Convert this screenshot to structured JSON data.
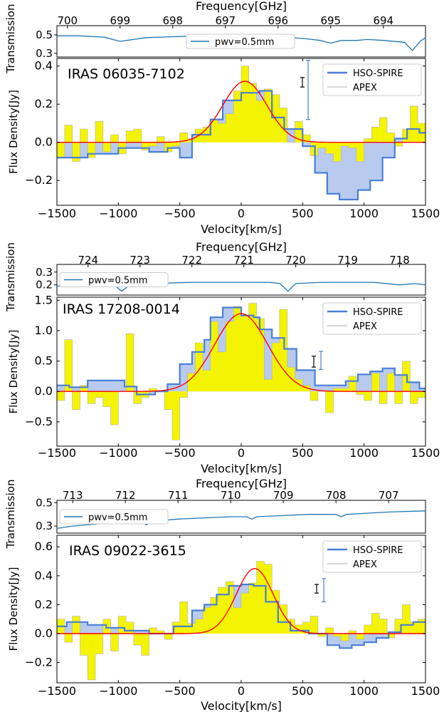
{
  "chart_data": [
    {
      "type": "line",
      "source_name": "IRAS 06035-7102",
      "freq_axis": {
        "label": "Frequency[GHz]",
        "ticks": [
          700,
          699,
          698,
          697,
          696,
          695,
          694
        ],
        "range_ghz": [
          700.2,
          693.2
        ]
      },
      "trans": {
        "ylabel": "Transmission",
        "yticks": [
          0.3,
          0.5
        ],
        "ylim": [
          0.26,
          0.6
        ],
        "legend": "pwv=0.5mm",
        "x": [
          700.2,
          699.8,
          699.3,
          699.0,
          698.5,
          698.0,
          697.5,
          697.0,
          696.5,
          696.0,
          695.5,
          695.2,
          695.0,
          694.8,
          694.5,
          694.3,
          694.0,
          693.6,
          693.45,
          693.3,
          693.2
        ],
        "y": [
          0.49,
          0.49,
          0.475,
          0.43,
          0.47,
          0.48,
          0.49,
          0.49,
          0.49,
          0.48,
          0.46,
          0.44,
          0.41,
          0.44,
          0.44,
          0.45,
          0.44,
          0.42,
          0.33,
          0.43,
          0.47
        ]
      },
      "flux": {
        "xlabel": "Velocity[km/s]",
        "ylabel": "Flux Density[Jy]",
        "xlim": [
          -1500,
          1500
        ],
        "ylim": [
          -0.33,
          0.44
        ],
        "xticks": [
          -1500,
          -1000,
          -500,
          0,
          500,
          1000,
          1500
        ],
        "yticks": [
          -0.2,
          0.0,
          0.2,
          0.4
        ],
        "legend": [
          "HSO-SPIRE",
          "APEX"
        ],
        "apex_x": [
          -1500,
          -1437,
          -1375,
          -1312,
          -1250,
          -1187,
          -1125,
          -1062,
          -1000,
          -937,
          -875,
          -812,
          -750,
          -687,
          -625,
          -562,
          -500,
          -437,
          -375,
          -312,
          -250,
          -187,
          -125,
          -62,
          0,
          62,
          125,
          187,
          250,
          312,
          375,
          437,
          500,
          562,
          625,
          687,
          750,
          812,
          875,
          937,
          1000,
          1062,
          1125,
          1187,
          1250,
          1312,
          1375,
          1437
        ],
        "apex_y": [
          -0.08,
          0.09,
          -0.1,
          0.07,
          -0.08,
          0.11,
          -0.05,
          0.04,
          -0.06,
          0.06,
          0.07,
          -0.04,
          -0.02,
          0.03,
          -0.05,
          -0.02,
          0.05,
          0.02,
          0.07,
          0.08,
          0.12,
          0.1,
          0.15,
          0.27,
          0.4,
          0.31,
          0.22,
          0.28,
          0.25,
          0.18,
          0.0,
          0.11,
          0.04,
          -0.07,
          -0.03,
          -0.06,
          -0.1,
          -0.02,
          -0.03,
          -0.1,
          0.02,
          0.08,
          0.13,
          0.05,
          -0.02,
          0.07,
          0.19,
          0.1
        ],
        "spire_x": [
          -1500,
          -1250,
          -1000,
          -750,
          -600,
          -500,
          -400,
          -250,
          -150,
          0,
          150,
          250,
          350,
          500,
          600,
          700,
          800,
          950,
          1050,
          1150,
          1250,
          1350,
          1450,
          1500
        ],
        "spire_y": [
          -0.08,
          -0.06,
          -0.03,
          -0.05,
          -0.03,
          -0.08,
          0.04,
          0.12,
          0.22,
          0.26,
          0.27,
          0.13,
          0.07,
          -0.02,
          -0.16,
          -0.27,
          -0.3,
          -0.25,
          -0.2,
          -0.08,
          0.02,
          0.07,
          0.05,
          0.05
        ],
        "gauss": {
          "amp": 0.32,
          "center": 30,
          "sigma": 180
        },
        "apex_error": [
          0.29,
          0.34
        ],
        "spire_error": [
          0.12,
          0.43
        ]
      }
    },
    {
      "type": "line",
      "source_name": "IRAS 17208-0014",
      "freq_axis": {
        "label": "Frequency[GHz]",
        "ticks": [
          724,
          723,
          722,
          721,
          720,
          719,
          718
        ],
        "range_ghz": [
          724.6,
          717.5
        ]
      },
      "trans": {
        "ylabel": "Transmission",
        "yticks": [
          0.2,
          0.3
        ],
        "ylim": [
          0.12,
          0.36
        ],
        "legend": "pwv=0.5mm",
        "x": [
          724.6,
          724.0,
          723.5,
          723.35,
          723.2,
          722.8,
          722.0,
          721.0,
          720.5,
          720.3,
          720.15,
          720.0,
          719.5,
          719.0,
          718.5,
          718.0,
          717.7,
          717.5
        ],
        "y": [
          0.19,
          0.2,
          0.2,
          0.15,
          0.2,
          0.21,
          0.22,
          0.22,
          0.22,
          0.21,
          0.15,
          0.21,
          0.22,
          0.22,
          0.22,
          0.2,
          0.21,
          0.2
        ]
      },
      "flux": {
        "xlabel": "Velocity[km/s]",
        "ylabel": "Flux Density[Jy]",
        "xlim": [
          -1500,
          1500
        ],
        "ylim": [
          -0.9,
          1.55
        ],
        "xticks": [
          -1500,
          -1000,
          -500,
          0,
          500,
          1000,
          1500
        ],
        "yticks": [
          -0.5,
          0.0,
          0.5,
          1.0,
          1.5
        ],
        "legend": [
          "HSO-SPIRE",
          "APEX"
        ],
        "apex_x": [
          -1500,
          -1437,
          -1375,
          -1312,
          -1250,
          -1187,
          -1125,
          -1062,
          -1000,
          -937,
          -875,
          -812,
          -750,
          -687,
          -625,
          -562,
          -500,
          -437,
          -375,
          -312,
          -250,
          -187,
          -125,
          -62,
          0,
          62,
          125,
          187,
          250,
          312,
          375,
          437,
          500,
          562,
          625,
          687,
          750,
          812,
          875,
          937,
          1000,
          1062,
          1125,
          1187,
          1250,
          1312,
          1375,
          1437
        ],
        "apex_y": [
          -0.15,
          0.85,
          -0.3,
          0.1,
          -0.2,
          -0.1,
          -0.25,
          -0.55,
          0.0,
          0.95,
          -0.2,
          -0.1,
          0.05,
          0.0,
          -0.3,
          -0.8,
          -0.1,
          0.3,
          0.8,
          0.35,
          1.15,
          0.65,
          1.15,
          1.4,
          1.25,
          1.45,
          1.2,
          0.2,
          0.8,
          1.35,
          0.4,
          0.2,
          0.1,
          -0.15,
          0.0,
          -0.35,
          0.05,
          0.05,
          0.25,
          -0.05,
          -0.15,
          0.3,
          -0.2,
          0.3,
          -0.2,
          0.5,
          -0.2,
          -0.1
        ],
        "spire_x": [
          -1500,
          -1400,
          -1250,
          -1050,
          -950,
          -850,
          -700,
          -600,
          -500,
          -400,
          -300,
          -250,
          -150,
          0,
          100,
          150,
          250,
          350,
          450,
          600,
          750,
          850,
          950,
          1050,
          1150,
          1250,
          1350,
          1450,
          1500
        ],
        "spire_y": [
          0.1,
          0.07,
          0.18,
          0.18,
          0.08,
          -0.05,
          0.0,
          0.12,
          0.45,
          0.65,
          0.85,
          1.22,
          1.38,
          1.25,
          1.22,
          1.02,
          0.88,
          0.7,
          0.35,
          0.1,
          0.1,
          0.17,
          0.28,
          0.33,
          0.38,
          0.27,
          0.15,
          0.05,
          0.05
        ],
        "gauss": {
          "amp": 1.28,
          "center": 0,
          "sigma": 215
        },
        "apex_error": [
          0.4,
          0.58
        ],
        "spire_error": [
          0.36,
          0.66
        ]
      }
    },
    {
      "type": "line",
      "source_name": "IRAS 09022-3615",
      "freq_axis": {
        "label": "Frequency[GHz]",
        "ticks": [
          713,
          712,
          711,
          710,
          709,
          708,
          707
        ],
        "range_ghz": [
          713.3,
          706.3
        ]
      },
      "trans": {
        "ylabel": "Transmission",
        "yticks": [
          0.3,
          0.5
        ],
        "ylim": [
          0.24,
          0.52
        ],
        "legend": "pwv=0.5mm",
        "x": [
          713.3,
          713.0,
          712.5,
          712.0,
          711.7,
          711.6,
          711.5,
          711.0,
          710.5,
          710.0,
          709.7,
          709.6,
          709.5,
          709.0,
          708.5,
          708.0,
          707.9,
          707.8,
          707.0,
          706.3
        ],
        "y": [
          0.28,
          0.3,
          0.32,
          0.34,
          0.34,
          0.31,
          0.34,
          0.36,
          0.37,
          0.38,
          0.38,
          0.36,
          0.38,
          0.39,
          0.4,
          0.4,
          0.38,
          0.4,
          0.42,
          0.43
        ]
      },
      "flux": {
        "xlabel": "Velocity[km/s]",
        "ylabel": "Flux Density[Jy]",
        "xlim": [
          -1500,
          1500
        ],
        "ylim": [
          -0.34,
          0.68
        ],
        "xticks": [
          -1500,
          -1000,
          -500,
          0,
          500,
          1000,
          1500
        ],
        "yticks": [
          -0.2,
          0.0,
          0.2,
          0.4,
          0.6
        ],
        "legend": [
          "HSO-SPIRE",
          "APEX"
        ],
        "apex_x": [
          -1500,
          -1437,
          -1375,
          -1312,
          -1250,
          -1187,
          -1125,
          -1062,
          -1000,
          -937,
          -875,
          -812,
          -750,
          -687,
          -625,
          -562,
          -500,
          -437,
          -375,
          -312,
          -250,
          -187,
          -125,
          -62,
          0,
          62,
          125,
          187,
          250,
          312,
          375,
          437,
          500,
          562,
          625,
          687,
          750,
          812,
          875,
          937,
          1000,
          1062,
          1125,
          1187,
          1250,
          1312,
          1375,
          1437
        ],
        "apex_y": [
          0.1,
          -0.06,
          0.12,
          -0.15,
          -0.32,
          -0.14,
          0.1,
          -0.12,
          0.12,
          0.08,
          -0.08,
          -0.15,
          0.04,
          0.02,
          -0.04,
          0.08,
          0.22,
          0.07,
          0.1,
          0.18,
          0.25,
          0.32,
          0.36,
          0.18,
          0.28,
          0.35,
          0.5,
          0.48,
          0.3,
          0.2,
          0.1,
          0.06,
          0.08,
          0.12,
          -0.02,
          0.04,
          -0.02,
          -0.05,
          0.02,
          -0.04,
          0.06,
          0.14,
          0.1,
          -0.03,
          0.1,
          0.2,
          0.08,
          0.1
        ],
        "spire_x": [
          -1500,
          -1420,
          -1250,
          -1100,
          -950,
          -750,
          -550,
          -400,
          -300,
          -200,
          -100,
          0,
          100,
          200,
          300,
          400,
          550,
          700,
          800,
          900,
          1000,
          1100,
          1200,
          1300,
          1400,
          1500
        ],
        "spire_y": [
          0.05,
          0.08,
          0.06,
          0.04,
          0.02,
          0.0,
          0.05,
          0.16,
          0.2,
          0.27,
          0.33,
          0.34,
          0.33,
          0.22,
          0.08,
          0.02,
          0.0,
          -0.08,
          -0.1,
          -0.08,
          -0.06,
          -0.03,
          0.01,
          0.06,
          0.08,
          0.08
        ],
        "gauss": {
          "amp": 0.45,
          "center": 110,
          "sigma": 150
        },
        "apex_error": [
          0.28,
          0.34
        ],
        "spire_error": [
          0.22,
          0.38
        ]
      }
    }
  ]
}
